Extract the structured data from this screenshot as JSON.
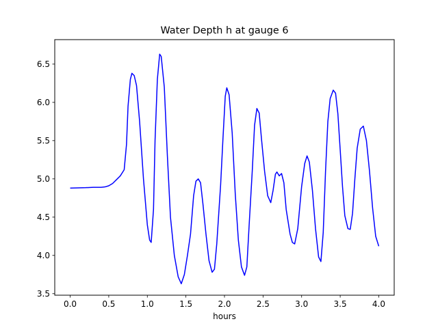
{
  "chart_data": {
    "type": "line",
    "title": "Water Depth h at gauge 6",
    "xlabel": "hours",
    "ylabel": "",
    "xlim": [
      -0.2,
      4.2
    ],
    "ylim": [
      3.48,
      6.82
    ],
    "xticks": [
      0.0,
      0.5,
      1.0,
      1.5,
      2.0,
      2.5,
      3.0,
      3.5,
      4.0
    ],
    "xtick_labels": [
      "0.0",
      "0.5",
      "1.0",
      "1.5",
      "2.0",
      "2.5",
      "3.0",
      "3.5",
      "4.0"
    ],
    "yticks": [
      3.5,
      4.0,
      4.5,
      5.0,
      5.5,
      6.0,
      6.5
    ],
    "ytick_labels": [
      "3.5",
      "4.0",
      "4.5",
      "5.0",
      "5.5",
      "6.0",
      "6.5"
    ],
    "grid": false,
    "series": [
      {
        "color": "#0000ff",
        "points": [
          [
            0.0,
            4.88
          ],
          [
            0.2,
            4.885
          ],
          [
            0.3,
            4.89
          ],
          [
            0.4,
            4.89
          ],
          [
            0.45,
            4.895
          ],
          [
            0.5,
            4.91
          ],
          [
            0.55,
            4.94
          ],
          [
            0.6,
            4.99
          ],
          [
            0.65,
            5.04
          ],
          [
            0.7,
            5.12
          ],
          [
            0.73,
            5.45
          ],
          [
            0.75,
            5.95
          ],
          [
            0.78,
            6.3
          ],
          [
            0.8,
            6.38
          ],
          [
            0.83,
            6.35
          ],
          [
            0.86,
            6.22
          ],
          [
            0.9,
            5.75
          ],
          [
            0.95,
            5.0
          ],
          [
            1.0,
            4.4
          ],
          [
            1.03,
            4.2
          ],
          [
            1.05,
            4.17
          ],
          [
            1.08,
            4.6
          ],
          [
            1.1,
            5.5
          ],
          [
            1.13,
            6.3
          ],
          [
            1.16,
            6.63
          ],
          [
            1.18,
            6.6
          ],
          [
            1.22,
            6.2
          ],
          [
            1.26,
            5.3
          ],
          [
            1.3,
            4.5
          ],
          [
            1.35,
            4.0
          ],
          [
            1.4,
            3.72
          ],
          [
            1.44,
            3.63
          ],
          [
            1.48,
            3.75
          ],
          [
            1.52,
            4.0
          ],
          [
            1.56,
            4.28
          ],
          [
            1.6,
            4.78
          ],
          [
            1.63,
            4.97
          ],
          [
            1.66,
            5.0
          ],
          [
            1.69,
            4.95
          ],
          [
            1.72,
            4.68
          ],
          [
            1.76,
            4.28
          ],
          [
            1.8,
            3.93
          ],
          [
            1.84,
            3.78
          ],
          [
            1.87,
            3.82
          ],
          [
            1.9,
            4.15
          ],
          [
            1.95,
            4.92
          ],
          [
            1.98,
            5.52
          ],
          [
            2.01,
            6.08
          ],
          [
            2.03,
            6.19
          ],
          [
            2.06,
            6.1
          ],
          [
            2.1,
            5.6
          ],
          [
            2.14,
            4.8
          ],
          [
            2.18,
            4.2
          ],
          [
            2.22,
            3.85
          ],
          [
            2.26,
            3.74
          ],
          [
            2.29,
            3.85
          ],
          [
            2.32,
            4.4
          ],
          [
            2.36,
            5.1
          ],
          [
            2.39,
            5.7
          ],
          [
            2.42,
            5.92
          ],
          [
            2.45,
            5.86
          ],
          [
            2.48,
            5.52
          ],
          [
            2.52,
            5.1
          ],
          [
            2.56,
            4.78
          ],
          [
            2.6,
            4.69
          ],
          [
            2.63,
            4.85
          ],
          [
            2.66,
            5.06
          ],
          [
            2.68,
            5.09
          ],
          [
            2.71,
            5.04
          ],
          [
            2.74,
            5.07
          ],
          [
            2.77,
            4.95
          ],
          [
            2.8,
            4.6
          ],
          [
            2.85,
            4.28
          ],
          [
            2.88,
            4.17
          ],
          [
            2.91,
            4.15
          ],
          [
            2.95,
            4.35
          ],
          [
            3.0,
            4.9
          ],
          [
            3.04,
            5.2
          ],
          [
            3.07,
            5.3
          ],
          [
            3.1,
            5.22
          ],
          [
            3.14,
            4.85
          ],
          [
            3.18,
            4.35
          ],
          [
            3.22,
            3.98
          ],
          [
            3.25,
            3.92
          ],
          [
            3.28,
            4.3
          ],
          [
            3.31,
            5.1
          ],
          [
            3.34,
            5.75
          ],
          [
            3.37,
            6.05
          ],
          [
            3.41,
            6.16
          ],
          [
            3.44,
            6.12
          ],
          [
            3.47,
            5.85
          ],
          [
            3.5,
            5.38
          ],
          [
            3.53,
            4.9
          ],
          [
            3.56,
            4.52
          ],
          [
            3.6,
            4.35
          ],
          [
            3.63,
            4.34
          ],
          [
            3.66,
            4.55
          ],
          [
            3.69,
            5.0
          ],
          [
            3.72,
            5.4
          ],
          [
            3.76,
            5.65
          ],
          [
            3.8,
            5.69
          ],
          [
            3.84,
            5.5
          ],
          [
            3.88,
            5.1
          ],
          [
            3.92,
            4.62
          ],
          [
            3.96,
            4.25
          ],
          [
            4.0,
            4.12
          ]
        ]
      }
    ]
  }
}
